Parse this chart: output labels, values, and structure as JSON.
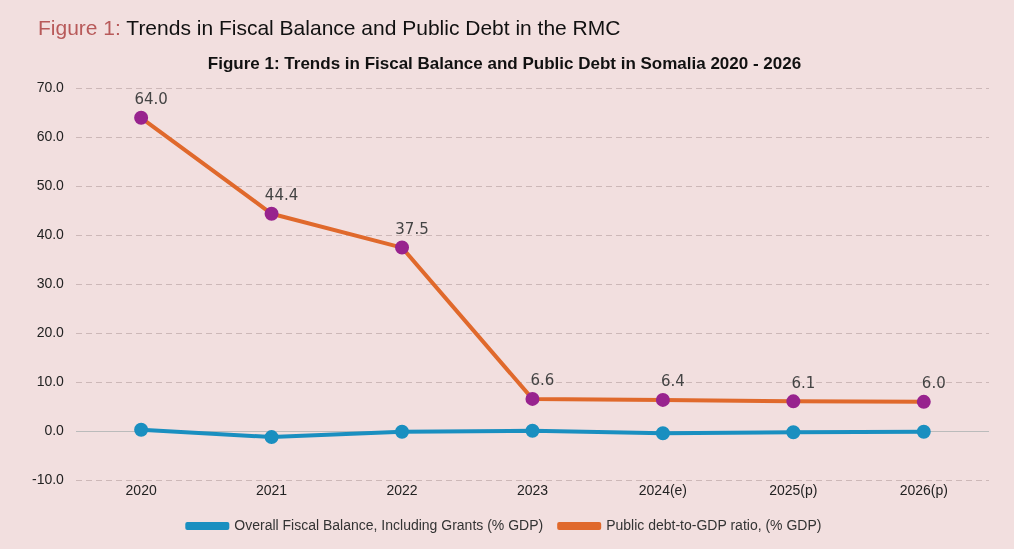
{
  "chart_data": {
    "type": "line",
    "title": "Figure 1: Trends in Fiscal Balance and Public Debt in the RMC",
    "subtitle": "Figure 1: Trends in Fiscal Balance and Public Debt in Somalia 2020 - 2026",
    "categories": [
      "2020",
      "2021",
      "2022",
      "2023",
      "2024(e)",
      "2025(p)",
      "2026(p)"
    ],
    "series": [
      {
        "name": "Overall Fiscal Balance, Including Grants (% GDP)",
        "color": "#1a8fc0",
        "values": [
          0.3,
          -1.2,
          -0.1,
          0.1,
          -0.4,
          -0.2,
          -0.1
        ]
      },
      {
        "name": "Public debt-to-GDP ratio, (% GDP)",
        "color": "#e0692c",
        "colors": [
          "#98238e",
          "#98238e",
          "#98238e",
          "#98238e",
          "#98238e",
          "#98238e",
          "#98238e"
        ],
        "values": [
          64.0,
          44.4,
          37.5,
          6.6,
          6.4,
          6.1,
          6.0
        ],
        "value_labels": [
          "64.0",
          "44.4",
          "37.5",
          "6.6",
          "6.4",
          "6.1",
          "6.0"
        ]
      }
    ],
    "ylim": [
      -10,
      70
    ],
    "yticks": [
      {
        "value": -10,
        "label": "-10.0"
      },
      {
        "value": 0,
        "label": "0.0"
      },
      {
        "value": 10,
        "label": "10.0"
      },
      {
        "value": 20,
        "label": "20.0"
      },
      {
        "value": 30,
        "label": "30.0"
      },
      {
        "value": 40,
        "label": "40.0"
      },
      {
        "value": 50,
        "label": "50.0"
      },
      {
        "value": 60,
        "label": "60.0"
      },
      {
        "value": 70,
        "label": "70.0"
      }
    ],
    "grid": "y",
    "legend": "bottom",
    "marker": "circle",
    "line_style": "solid"
  }
}
